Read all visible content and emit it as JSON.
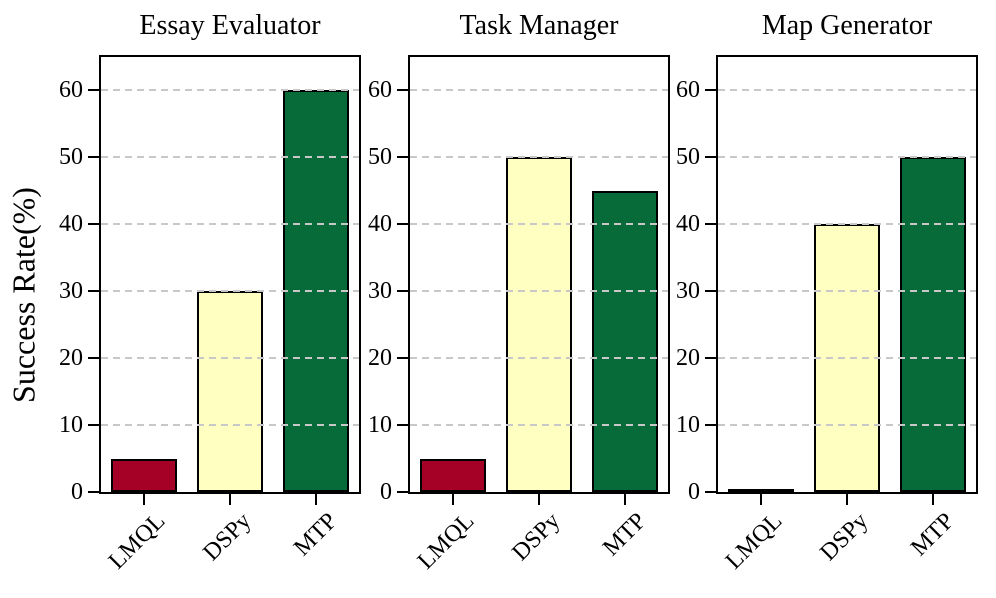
{
  "figure": {
    "colors": {
      "bar_fill": {
        "LMQL": "#A50026",
        "DSPy": "#FFFFC2",
        "MTP": "#066B38"
      },
      "bar_edge": "#000000",
      "grid": "#C8C8C8",
      "axis": "#000000",
      "background": "#FFFFFF"
    }
  },
  "chart_data": [
    {
      "type": "bar",
      "title": "Essay Evaluator",
      "categories": [
        "LMQL",
        "DSPy",
        "MTP"
      ],
      "values": [
        5,
        30,
        60
      ],
      "ylabel": "Success Rate(%)",
      "xlabel": "",
      "ylim": [
        0,
        65
      ],
      "yticks": [
        0,
        10,
        20,
        30,
        40,
        50,
        60
      ],
      "grid": "horizontal dashed, drawn over bars",
      "legend": "none"
    },
    {
      "type": "bar",
      "title": "Task Manager",
      "categories": [
        "LMQL",
        "DSPy",
        "MTP"
      ],
      "values": [
        5,
        50,
        45
      ],
      "ylabel": "Success Rate(%)",
      "xlabel": "",
      "ylim": [
        0,
        65
      ],
      "yticks": [
        0,
        10,
        20,
        30,
        40,
        50,
        60
      ],
      "grid": "horizontal dashed, drawn over bars",
      "legend": "none"
    },
    {
      "type": "bar",
      "title": "Map Generator",
      "categories": [
        "LMQL",
        "DSPy",
        "MTP"
      ],
      "values": [
        0,
        40,
        50
      ],
      "ylabel": "Success Rate(%)",
      "xlabel": "",
      "ylim": [
        0,
        65
      ],
      "yticks": [
        0,
        10,
        20,
        30,
        40,
        50,
        60
      ],
      "grid": "horizontal dashed, drawn over bars",
      "legend": "none"
    }
  ]
}
